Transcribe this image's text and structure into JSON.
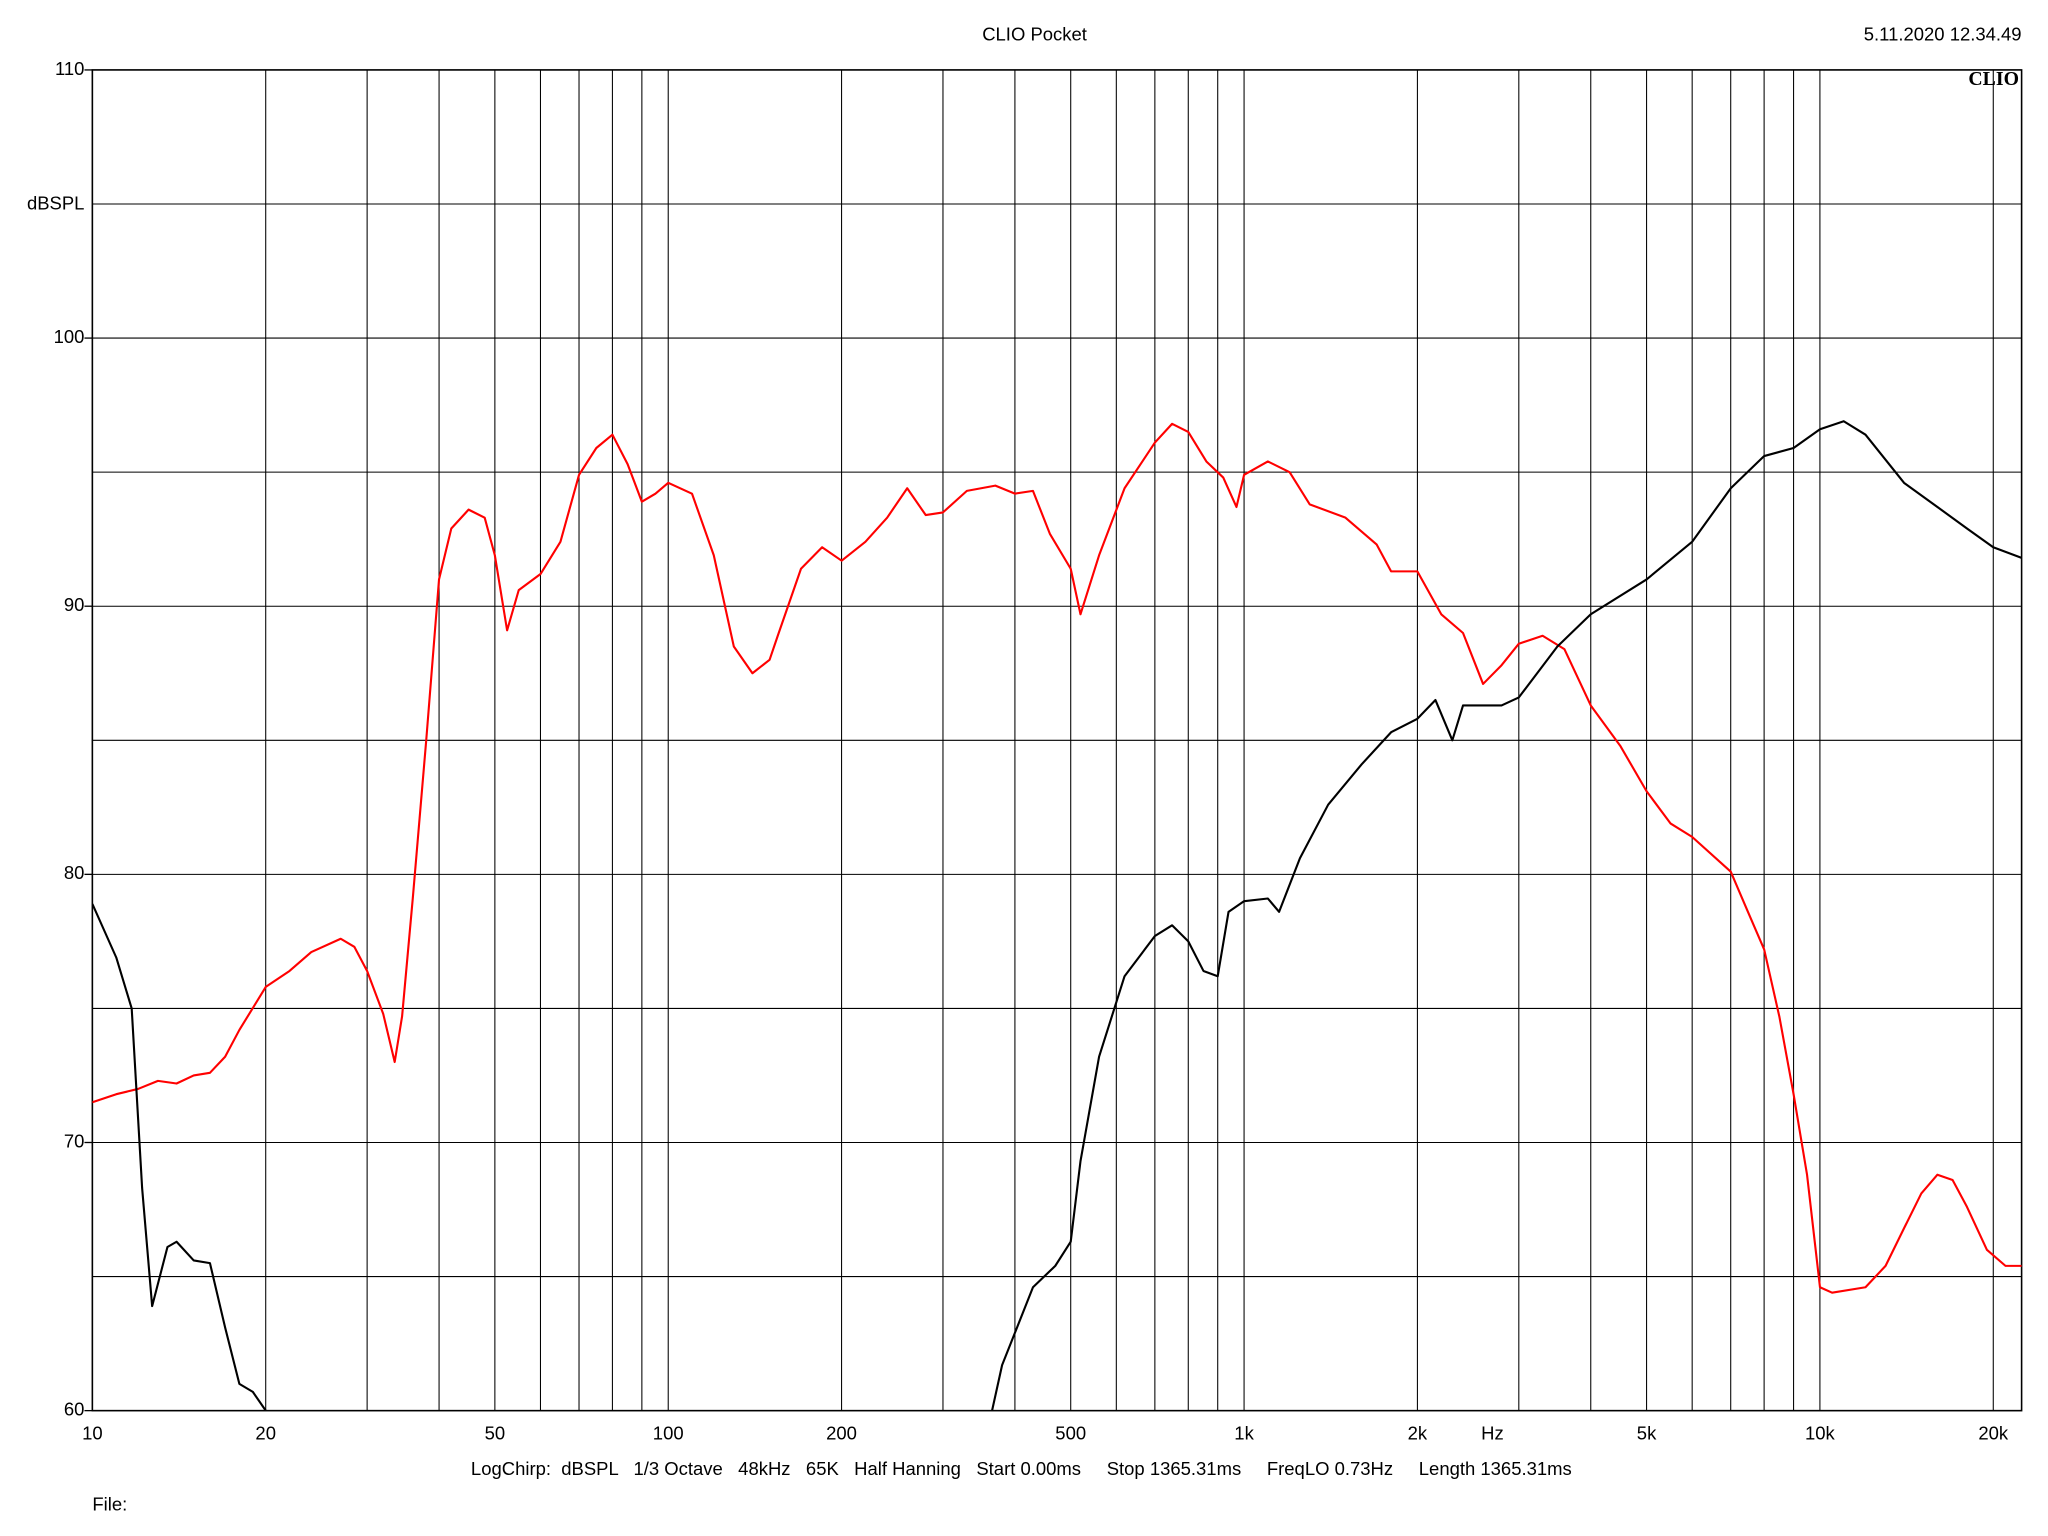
{
  "chart_data": {
    "type": "line",
    "title": "CLIO Pocket",
    "timestamp": "5.11.2020 12.34.49",
    "logo": "CLIO",
    "y_label": "dBSPL",
    "x_label": "Hz",
    "settings_line": "LogChirp:  dBSPL   1/3 Octave   48kHz   65K   Half Hanning   Start 0.00ms     Stop 1365.31ms     FreqLO 0.73Hz     Length 1365.31ms",
    "file_label": "File:",
    "xscale": "log",
    "grid": true,
    "xlim": [
      10,
      22400
    ],
    "ylim": [
      60,
      110
    ],
    "yticks": [
      60,
      70,
      80,
      90,
      100,
      110
    ],
    "ygrid": [
      65,
      75,
      85,
      95,
      105
    ],
    "xticks": [
      10,
      20,
      50,
      100,
      200,
      500,
      {
        "value": 1000,
        "label": "1k"
      },
      {
        "value": 2000,
        "label": "2k"
      },
      {
        "value": 5000,
        "label": "5k"
      },
      {
        "value": 10000,
        "label": "10k"
      },
      {
        "value": 20000,
        "label": "20k"
      }
    ],
    "xgrid": [
      30,
      40,
      60,
      70,
      80,
      90,
      300,
      400,
      600,
      700,
      800,
      900,
      3000,
      4000,
      6000,
      7000,
      8000,
      9000
    ],
    "series": [
      {
        "color": "#ff0000",
        "x": [
          10,
          11,
          12,
          13,
          14,
          15,
          16,
          17,
          18,
          20,
          22,
          24,
          27,
          28.5,
          30,
          32,
          33.5,
          34.5,
          36,
          38,
          40,
          42,
          45,
          48,
          50,
          52.5,
          55,
          60,
          65,
          70,
          75,
          80,
          85,
          90,
          95,
          100,
          110,
          120,
          130,
          140,
          150,
          155,
          170,
          185,
          200,
          220,
          240,
          260,
          280,
          300,
          330,
          370,
          400,
          430,
          460,
          500,
          520,
          560,
          620,
          700,
          750,
          800,
          860,
          920,
          970,
          1000,
          1100,
          1200,
          1300,
          1500,
          1700,
          1800,
          2000,
          2200,
          2400,
          2600,
          2800,
          3000,
          3300,
          3600,
          4000,
          4500,
          5000,
          5500,
          6000,
          7000,
          7500,
          8000,
          8500,
          9000,
          9500,
          10000,
          10500,
          12000,
          13000,
          14000,
          15000,
          16000,
          17000,
          18000,
          19500,
          21000,
          22400
        ],
        "values": [
          71.5,
          71.8,
          72.0,
          72.3,
          72.2,
          72.5,
          72.6,
          73.2,
          74.2,
          75.8,
          76.4,
          77.1,
          77.6,
          77.3,
          76.4,
          74.8,
          73.0,
          74.7,
          79.1,
          85.0,
          91.0,
          92.9,
          93.6,
          93.3,
          91.9,
          89.1,
          90.6,
          91.2,
          92.4,
          94.9,
          95.9,
          96.4,
          95.3,
          93.9,
          94.2,
          94.6,
          94.2,
          91.9,
          88.5,
          87.5,
          88.0,
          88.9,
          91.4,
          92.2,
          91.7,
          92.4,
          93.3,
          94.4,
          93.4,
          93.5,
          94.3,
          94.5,
          94.2,
          94.3,
          92.7,
          91.4,
          89.7,
          91.9,
          94.4,
          96.1,
          96.8,
          96.5,
          95.4,
          94.8,
          93.7,
          94.9,
          95.4,
          95.0,
          93.8,
          93.3,
          92.3,
          91.3,
          91.3,
          89.7,
          89.0,
          87.1,
          87.8,
          88.6,
          88.9,
          88.4,
          86.3,
          84.8,
          83.1,
          81.9,
          81.4,
          80.1,
          78.6,
          77.2,
          74.7,
          71.8,
          68.8,
          64.6,
          64.4,
          64.6,
          65.4,
          66.8,
          68.1,
          68.8,
          68.6,
          67.6,
          66.0,
          65.4,
          65.4
        ]
      },
      {
        "color": "#000000",
        "x": [
          10,
          11,
          11.7,
          12.2,
          12.7,
          13.5,
          14,
          15,
          16,
          17,
          18,
          19,
          20,
          100,
          365,
          380,
          400,
          430,
          470,
          500,
          520,
          560,
          620,
          700,
          750,
          800,
          850,
          900,
          940,
          1000,
          1100,
          1150,
          1250,
          1400,
          1600,
          1800,
          2000,
          2150,
          2300,
          2400,
          2800,
          3000,
          3500,
          4000,
          5000,
          6000,
          7000,
          8000,
          9000,
          10000,
          11000,
          12000,
          14000,
          16000,
          18000,
          20000,
          22400
        ],
        "values": [
          78.9,
          76.9,
          75.0,
          68.3,
          63.9,
          66.1,
          66.3,
          65.6,
          65.5,
          63.1,
          61.0,
          60.7,
          60.0,
          null,
          60.0,
          61.7,
          62.9,
          64.6,
          65.4,
          66.3,
          69.3,
          73.2,
          76.2,
          77.7,
          78.1,
          77.5,
          76.4,
          76.2,
          78.6,
          79.0,
          79.1,
          78.6,
          80.6,
          82.6,
          84.1,
          85.3,
          85.8,
          86.5,
          85.0,
          86.3,
          86.3,
          86.6,
          88.5,
          89.7,
          91.0,
          92.4,
          94.4,
          95.6,
          95.9,
          96.6,
          96.9,
          96.4,
          94.6,
          93.7,
          92.9,
          92.2,
          91.8
        ]
      }
    ]
  }
}
